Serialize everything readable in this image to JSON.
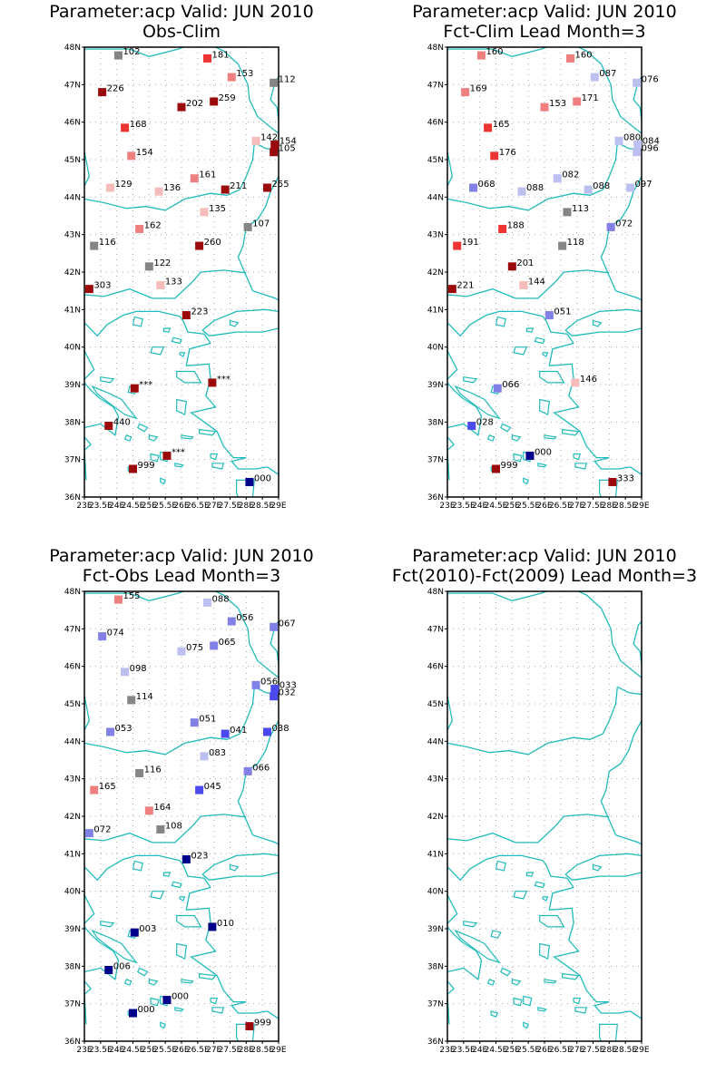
{
  "colors": {
    "coast": "#22bbbb",
    "grid": "#aaaaaa",
    "frame": "#000000",
    "palette": {
      "dred": "#9b0a0a",
      "red": "#ee3333",
      "lred": "#f08080",
      "pink": "#f6bcbc",
      "gray": "#858585",
      "lblue": "#bcc0f0",
      "mblue": "#8080e6",
      "blue": "#4a4aee",
      "navy": "#00008b"
    }
  },
  "map_grid": {
    "lon_range": [
      23,
      29
    ],
    "lat_range": [
      36,
      48
    ],
    "lat_labels": [
      "36N",
      "37N",
      "38N",
      "39N",
      "40N",
      "41N",
      "42N",
      "43N",
      "44N",
      "45N",
      "46N",
      "47N",
      "48N"
    ],
    "lon_labels": [
      "23E",
      "23.5E",
      "24E",
      "24.5E",
      "25E",
      "25.5E",
      "26E",
      "26.5E",
      "27E",
      "27.5E",
      "28E",
      "28.5E",
      "29E"
    ]
  },
  "panels": [
    {
      "title_line1": "Parameter:acp Valid: JUN 2010",
      "title_line2": "Obs-Clim",
      "stations": [
        {
          "lon": 24.05,
          "lat": 47.78,
          "label": "102",
          "c": "gray"
        },
        {
          "lon": 26.8,
          "lat": 47.7,
          "label": "181",
          "c": "red"
        },
        {
          "lon": 27.55,
          "lat": 47.2,
          "label": "153",
          "c": "lred"
        },
        {
          "lon": 28.85,
          "lat": 47.05,
          "label": "112",
          "c": "gray"
        },
        {
          "lon": 23.55,
          "lat": 46.8,
          "label": "226",
          "c": "dred"
        },
        {
          "lon": 26.0,
          "lat": 46.4,
          "label": "202",
          "c": "dred"
        },
        {
          "lon": 27.0,
          "lat": 46.55,
          "label": "259",
          "c": "dred"
        },
        {
          "lon": 24.25,
          "lat": 45.85,
          "label": "168",
          "c": "red"
        },
        {
          "lon": 28.3,
          "lat": 45.5,
          "label": "142",
          "c": "pink"
        },
        {
          "lon": 28.88,
          "lat": 45.4,
          "label": "154",
          "c": "dred"
        },
        {
          "lon": 28.85,
          "lat": 45.2,
          "label": "105",
          "c": "dred"
        },
        {
          "lon": 24.45,
          "lat": 45.1,
          "label": "154",
          "c": "lred"
        },
        {
          "lon": 26.4,
          "lat": 44.5,
          "label": "161",
          "c": "lred"
        },
        {
          "lon": 23.8,
          "lat": 44.25,
          "label": "129",
          "c": "pink"
        },
        {
          "lon": 25.3,
          "lat": 44.15,
          "label": "136",
          "c": "pink"
        },
        {
          "lon": 27.35,
          "lat": 44.2,
          "label": "211",
          "c": "dred"
        },
        {
          "lon": 28.65,
          "lat": 44.25,
          "label": "255",
          "c": "dred"
        },
        {
          "lon": 26.7,
          "lat": 43.6,
          "label": "135",
          "c": "pink"
        },
        {
          "lon": 28.05,
          "lat": 43.2,
          "label": "107",
          "c": "gray"
        },
        {
          "lon": 24.7,
          "lat": 43.15,
          "label": "162",
          "c": "lred"
        },
        {
          "lon": 23.3,
          "lat": 42.7,
          "label": "116",
          "c": "gray"
        },
        {
          "lon": 26.55,
          "lat": 42.7,
          "label": "260",
          "c": "dred"
        },
        {
          "lon": 25.0,
          "lat": 42.15,
          "label": "122",
          "c": "gray"
        },
        {
          "lon": 25.35,
          "lat": 41.65,
          "label": "133",
          "c": "pink"
        },
        {
          "lon": 23.15,
          "lat": 41.55,
          "label": "303",
          "c": "dred"
        },
        {
          "lon": 26.15,
          "lat": 40.85,
          "label": "223",
          "c": "dred"
        },
        {
          "lon": 24.55,
          "lat": 38.9,
          "label": "***",
          "c": "dred"
        },
        {
          "lon": 26.95,
          "lat": 39.05,
          "label": "***",
          "c": "dred"
        },
        {
          "lon": 23.75,
          "lat": 37.9,
          "label": "440",
          "c": "dred"
        },
        {
          "lon": 25.55,
          "lat": 37.1,
          "label": "***",
          "c": "dred"
        },
        {
          "lon": 24.5,
          "lat": 36.75,
          "label": "999",
          "c": "dred"
        },
        {
          "lon": 28.1,
          "lat": 36.4,
          "label": "000",
          "c": "navy"
        }
      ]
    },
    {
      "title_line1": "Parameter:acp Valid: JUN 2010",
      "title_line2": "Fct-Clim Lead Month=3",
      "stations": [
        {
          "lon": 24.05,
          "lat": 47.78,
          "label": "160",
          "c": "lred"
        },
        {
          "lon": 26.8,
          "lat": 47.7,
          "label": "160",
          "c": "lred"
        },
        {
          "lon": 27.55,
          "lat": 47.2,
          "label": "087",
          "c": "lblue"
        },
        {
          "lon": 28.85,
          "lat": 47.05,
          "label": "076",
          "c": "lblue"
        },
        {
          "lon": 23.55,
          "lat": 46.8,
          "label": "169",
          "c": "lred"
        },
        {
          "lon": 26.0,
          "lat": 46.4,
          "label": "153",
          "c": "lred"
        },
        {
          "lon": 27.0,
          "lat": 46.55,
          "label": "171",
          "c": "lred"
        },
        {
          "lon": 24.25,
          "lat": 45.85,
          "label": "165",
          "c": "red"
        },
        {
          "lon": 28.3,
          "lat": 45.5,
          "label": "080",
          "c": "lblue"
        },
        {
          "lon": 28.88,
          "lat": 45.4,
          "label": "084",
          "c": "lblue"
        },
        {
          "lon": 28.85,
          "lat": 45.2,
          "label": "096",
          "c": "lblue"
        },
        {
          "lon": 24.45,
          "lat": 45.1,
          "label": "176",
          "c": "red"
        },
        {
          "lon": 26.4,
          "lat": 44.5,
          "label": "082",
          "c": "lblue"
        },
        {
          "lon": 23.8,
          "lat": 44.25,
          "label": "068",
          "c": "mblue"
        },
        {
          "lon": 25.3,
          "lat": 44.15,
          "label": "088",
          "c": "lblue"
        },
        {
          "lon": 27.35,
          "lat": 44.2,
          "label": "088",
          "c": "lblue"
        },
        {
          "lon": 28.65,
          "lat": 44.25,
          "label": "097",
          "c": "lblue"
        },
        {
          "lon": 26.7,
          "lat": 43.6,
          "label": "113",
          "c": "gray"
        },
        {
          "lon": 28.05,
          "lat": 43.2,
          "label": "072",
          "c": "mblue"
        },
        {
          "lon": 24.7,
          "lat": 43.15,
          "label": "188",
          "c": "red"
        },
        {
          "lon": 23.3,
          "lat": 42.7,
          "label": "191",
          "c": "red"
        },
        {
          "lon": 26.55,
          "lat": 42.7,
          "label": "118",
          "c": "gray"
        },
        {
          "lon": 25.0,
          "lat": 42.15,
          "label": "201",
          "c": "dred"
        },
        {
          "lon": 25.35,
          "lat": 41.65,
          "label": "144",
          "c": "pink"
        },
        {
          "lon": 23.15,
          "lat": 41.55,
          "label": "221",
          "c": "dred"
        },
        {
          "lon": 26.15,
          "lat": 40.85,
          "label": "051",
          "c": "mblue"
        },
        {
          "lon": 24.55,
          "lat": 38.9,
          "label": "066",
          "c": "mblue"
        },
        {
          "lon": 26.95,
          "lat": 39.05,
          "label": "146",
          "c": "pink"
        },
        {
          "lon": 23.75,
          "lat": 37.9,
          "label": "028",
          "c": "blue"
        },
        {
          "lon": 25.55,
          "lat": 37.1,
          "label": "000",
          "c": "navy"
        },
        {
          "lon": 24.5,
          "lat": 36.75,
          "label": "999",
          "c": "dred"
        },
        {
          "lon": 28.1,
          "lat": 36.4,
          "label": "333",
          "c": "dred"
        }
      ]
    },
    {
      "title_line1": "Parameter:acp Valid: JUN 2010",
      "title_line2": "Fct-Obs Lead Month=3",
      "stations": [
        {
          "lon": 24.05,
          "lat": 47.78,
          "label": "155",
          "c": "lred"
        },
        {
          "lon": 26.8,
          "lat": 47.7,
          "label": "088",
          "c": "lblue"
        },
        {
          "lon": 27.55,
          "lat": 47.2,
          "label": "056",
          "c": "mblue"
        },
        {
          "lon": 28.85,
          "lat": 47.05,
          "label": "067",
          "c": "mblue"
        },
        {
          "lon": 23.55,
          "lat": 46.8,
          "label": "074",
          "c": "mblue"
        },
        {
          "lon": 26.0,
          "lat": 46.4,
          "label": "075",
          "c": "lblue"
        },
        {
          "lon": 27.0,
          "lat": 46.55,
          "label": "065",
          "c": "mblue"
        },
        {
          "lon": 24.25,
          "lat": 45.85,
          "label": "098",
          "c": "lblue"
        },
        {
          "lon": 28.3,
          "lat": 45.5,
          "label": "056",
          "c": "mblue"
        },
        {
          "lon": 28.88,
          "lat": 45.4,
          "label": "033",
          "c": "blue"
        },
        {
          "lon": 28.85,
          "lat": 45.2,
          "label": "032",
          "c": "blue"
        },
        {
          "lon": 24.45,
          "lat": 45.1,
          "label": "114",
          "c": "gray"
        },
        {
          "lon": 26.4,
          "lat": 44.5,
          "label": "051",
          "c": "mblue"
        },
        {
          "lon": 23.8,
          "lat": 44.25,
          "label": "053",
          "c": "mblue"
        },
        {
          "lon": 27.35,
          "lat": 44.2,
          "label": "041",
          "c": "blue"
        },
        {
          "lon": 28.65,
          "lat": 44.25,
          "label": "038",
          "c": "blue"
        },
        {
          "lon": 26.7,
          "lat": 43.6,
          "label": "083",
          "c": "lblue"
        },
        {
          "lon": 28.05,
          "lat": 43.2,
          "label": "066",
          "c": "mblue"
        },
        {
          "lon": 24.7,
          "lat": 43.15,
          "label": "116",
          "c": "gray"
        },
        {
          "lon": 23.3,
          "lat": 42.7,
          "label": "165",
          "c": "lred"
        },
        {
          "lon": 26.55,
          "lat": 42.7,
          "label": "045",
          "c": "blue"
        },
        {
          "lon": 25.0,
          "lat": 42.15,
          "label": "164",
          "c": "lred"
        },
        {
          "lon": 25.35,
          "lat": 41.65,
          "label": "108",
          "c": "gray"
        },
        {
          "lon": 23.15,
          "lat": 41.55,
          "label": "072",
          "c": "mblue"
        },
        {
          "lon": 26.15,
          "lat": 40.85,
          "label": "023",
          "c": "navy"
        },
        {
          "lon": 24.55,
          "lat": 38.9,
          "label": "003",
          "c": "navy"
        },
        {
          "lon": 26.95,
          "lat": 39.05,
          "label": "010",
          "c": "navy"
        },
        {
          "lon": 23.75,
          "lat": 37.9,
          "label": "006",
          "c": "navy"
        },
        {
          "lon": 25.55,
          "lat": 37.1,
          "label": "000",
          "c": "navy"
        },
        {
          "lon": 24.5,
          "lat": 36.75,
          "label": "000",
          "c": "navy"
        },
        {
          "lon": 28.1,
          "lat": 36.4,
          "label": "999",
          "c": "dred"
        }
      ]
    },
    {
      "title_line1": "Parameter:acp Valid: JUN 2010",
      "title_line2": "Fct(2010)-Fct(2009) Lead Month=3",
      "stations": []
    }
  ]
}
